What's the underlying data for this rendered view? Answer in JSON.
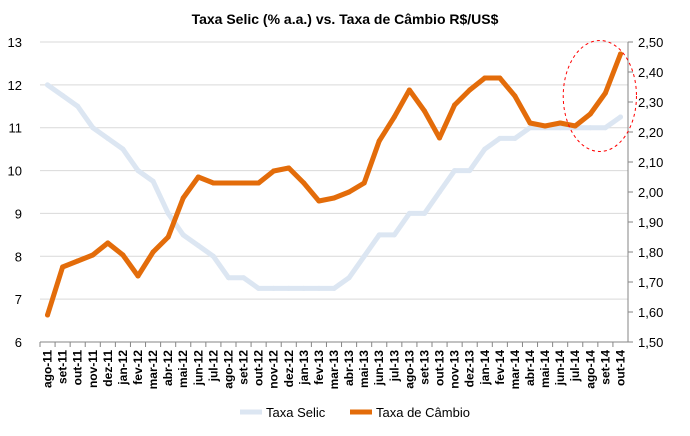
{
  "chart_data": {
    "type": "line",
    "title": "Taxa Selic (% a.a.) vs. Taxa de Câmbio R$/US$",
    "categories": [
      "ago-11",
      "set-11",
      "out-11",
      "nov-11",
      "dez-11",
      "jan-12",
      "fev-12",
      "mar-12",
      "abr-12",
      "mai-12",
      "jun-12",
      "jul-12",
      "ago-12",
      "set-12",
      "out-12",
      "nov-12",
      "dez-12",
      "jan-13",
      "fev-13",
      "mar-13",
      "abr-13",
      "mai-13",
      "jun-13",
      "jul-13",
      "ago-13",
      "set-13",
      "out-13",
      "nov-13",
      "dez-13",
      "jan-14",
      "fev-14",
      "mar-14",
      "abr-14",
      "mai-14",
      "jun-14",
      "jul-14",
      "ago-14",
      "set-14",
      "out-14"
    ],
    "left_axis": {
      "min": 6,
      "max": 13,
      "ticks": [
        "6",
        "7",
        "8",
        "9",
        "10",
        "11",
        "12",
        "13"
      ]
    },
    "right_axis": {
      "min": 1.5,
      "max": 2.5,
      "ticks": [
        "1,50",
        "1,60",
        "1,70",
        "1,80",
        "1,90",
        "2,00",
        "2,10",
        "2,20",
        "2,30",
        "2,40",
        "2,50"
      ]
    },
    "series": [
      {
        "name": "Taxa Selic",
        "axis": "left",
        "color": "#dce6f2",
        "values": [
          12.0,
          11.75,
          11.5,
          11.0,
          10.75,
          10.5,
          10.0,
          9.75,
          9.0,
          8.5,
          8.25,
          8.0,
          7.5,
          7.5,
          7.25,
          7.25,
          7.25,
          7.25,
          7.25,
          7.25,
          7.5,
          8.0,
          8.5,
          8.5,
          9.0,
          9.0,
          9.5,
          10.0,
          10.0,
          10.5,
          10.75,
          10.75,
          11.0,
          11.0,
          11.0,
          11.0,
          11.0,
          11.0,
          11.25
        ]
      },
      {
        "name": "Taxa de Câmbio",
        "axis": "right",
        "color": "#e36c0a",
        "values": [
          1.59,
          1.75,
          1.77,
          1.79,
          1.83,
          1.79,
          1.72,
          1.8,
          1.85,
          1.98,
          2.05,
          2.03,
          2.03,
          2.03,
          2.03,
          2.07,
          2.08,
          2.03,
          1.97,
          1.98,
          2.0,
          2.03,
          2.17,
          2.25,
          2.34,
          2.27,
          2.18,
          2.29,
          2.34,
          2.38,
          2.38,
          2.32,
          2.23,
          2.22,
          2.23,
          2.22,
          2.26,
          2.33,
          2.46
        ]
      }
    ],
    "annotations": [
      {
        "type": "dashed-ellipse",
        "color": "#ff0000",
        "around_categories": [
          "jul-14",
          "out-14"
        ]
      }
    ],
    "legend_position": "bottom",
    "gridlines": true
  }
}
